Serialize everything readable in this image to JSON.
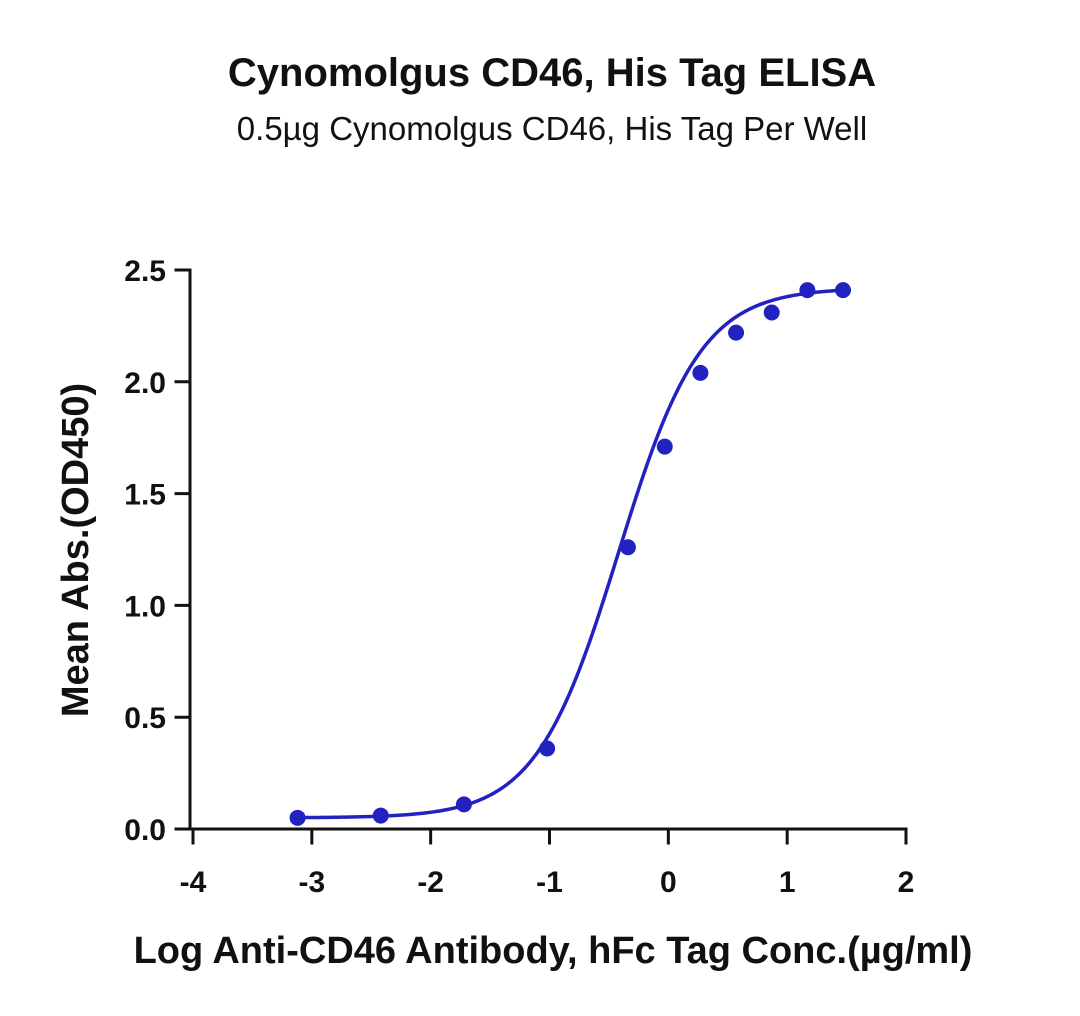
{
  "chart_data": {
    "type": "scatter",
    "title": "Cynomolgus CD46, His Tag ELISA",
    "subtitle": "0.5µg Cynomolgus CD46, His Tag Per Well",
    "xlabel": "Log Anti-CD46 Antibody, hFc Tag Conc.(µg/ml)",
    "ylabel": "Mean Abs.(OD450)",
    "xlim": [
      -4,
      2
    ],
    "ylim": [
      0,
      2.5
    ],
    "xticks": [
      "-4",
      "-3",
      "-2",
      "-1",
      "0",
      "1",
      "2"
    ],
    "yticks": [
      "0.0",
      "0.5",
      "1.0",
      "1.5",
      "2.0",
      "2.5"
    ],
    "grid": false,
    "color": "#2222c0",
    "series": [
      {
        "x": [
          -3.12,
          -2.42,
          -1.72,
          -1.02,
          -0.34,
          -0.03,
          0.27,
          0.57,
          0.87,
          1.17,
          1.47
        ],
        "y": [
          0.05,
          0.06,
          0.11,
          0.36,
          1.26,
          1.71,
          2.04,
          2.22,
          2.31,
          2.41,
          2.41
        ]
      }
    ],
    "fit": {
      "model": "4PL",
      "bottom": 0.05,
      "top": 2.42,
      "logEC50": -0.42,
      "hill": 1.25
    }
  }
}
